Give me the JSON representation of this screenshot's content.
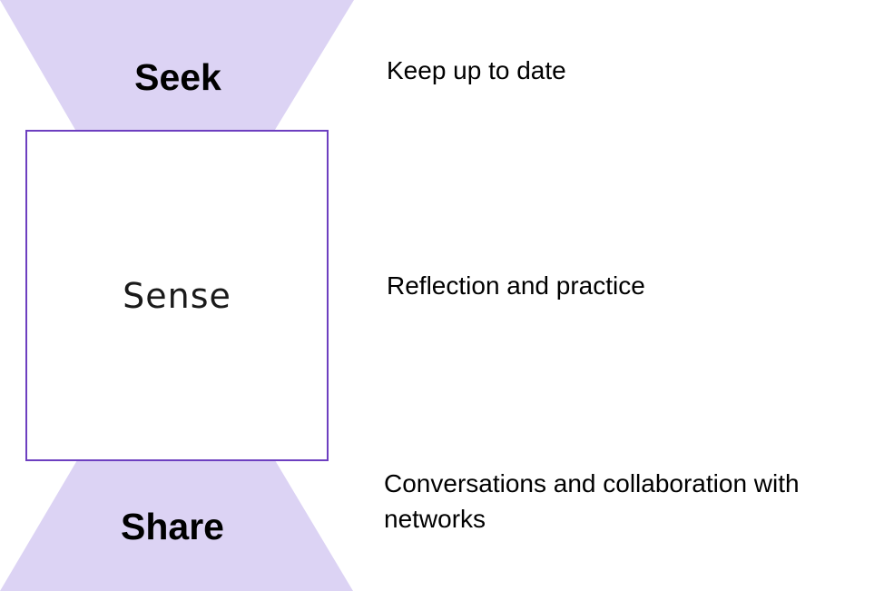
{
  "colors": {
    "trapezoid_fill": "#dcd3f4",
    "square_border": "#6d3fc0",
    "square_fill": "#ffffff"
  },
  "stages": {
    "seek": {
      "label": "Seek",
      "description": "Keep up to date"
    },
    "sense": {
      "label": "Sense",
      "description": "Reflection and practice"
    },
    "share": {
      "label": "Share",
      "description": "Conversations and collaboration with networks"
    }
  }
}
